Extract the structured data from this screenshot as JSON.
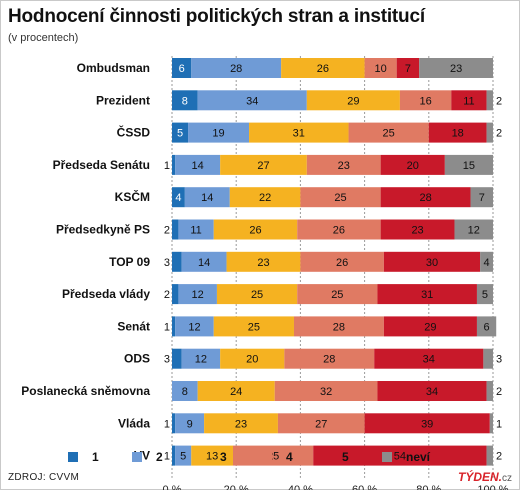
{
  "title": "Hodnocení činnosti politických stran a institucí",
  "subtitle": "(v procentech)",
  "source": "ZDROJ: CVVM",
  "brand": {
    "name": "TÝDEN",
    "dot": ".",
    "tld": "cz"
  },
  "colors": {
    "1": "#1f6fb5",
    "2": "#6f9bd6",
    "3": "#f5b221",
    "4": "#e07a63",
    "5": "#c8192a",
    "nevi": "#8c8c8c"
  },
  "legend": [
    {
      "key": "1",
      "label": "1"
    },
    {
      "key": "2",
      "label": "2"
    },
    {
      "key": "3",
      "label": "3"
    },
    {
      "key": "4",
      "label": "4"
    },
    {
      "key": "5",
      "label": "5"
    },
    {
      "key": "nevi",
      "label": "neví"
    }
  ],
  "chart_data": {
    "type": "bar",
    "orientation": "horizontal",
    "stacked": true,
    "title": "Hodnocení činnosti politických stran a institucí",
    "subtitle": "(v procentech)",
    "xlim": [
      0,
      100
    ],
    "x_ticks": [
      "0 %",
      "20 %",
      "40 %",
      "60 %",
      "80 %",
      "100 %"
    ],
    "grid": true,
    "legend_position": "bottom",
    "series_keys": [
      "1",
      "2",
      "3",
      "4",
      "5",
      "nevi"
    ],
    "series": [
      {
        "name": "1",
        "values": [
          6,
          8,
          5,
          1,
          4,
          2,
          3,
          2,
          1,
          3,
          0,
          1,
          1
        ]
      },
      {
        "name": "2",
        "values": [
          28,
          34,
          19,
          14,
          14,
          11,
          14,
          12,
          12,
          12,
          8,
          9,
          5
        ]
      },
      {
        "name": "3",
        "values": [
          26,
          29,
          31,
          27,
          22,
          26,
          23,
          25,
          25,
          20,
          24,
          23,
          13
        ]
      },
      {
        "name": "4",
        "values": [
          10,
          16,
          25,
          23,
          25,
          26,
          26,
          25,
          28,
          28,
          32,
          27,
          25
        ]
      },
      {
        "name": "5",
        "values": [
          7,
          11,
          18,
          20,
          28,
          23,
          30,
          31,
          29,
          34,
          34,
          39,
          54
        ]
      },
      {
        "name": "neví",
        "values": [
          23,
          2,
          2,
          15,
          7,
          12,
          4,
          5,
          6,
          3,
          2,
          1,
          2
        ]
      }
    ],
    "categories": [
      "Ombudsman",
      "Prezident",
      "ČSSD",
      "Předseda Senátu",
      "KSČM",
      "Předsedkyně PS",
      "TOP 09",
      "Předseda vlády",
      "Senát",
      "ODS",
      "Poslanecká sněmovna",
      "Vláda",
      "VV"
    ]
  }
}
